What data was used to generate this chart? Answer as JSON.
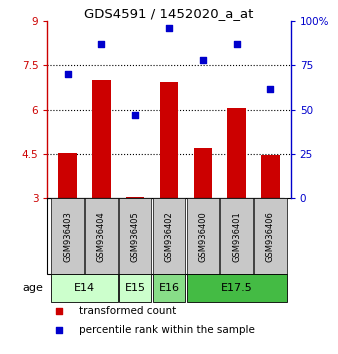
{
  "title": "GDS4591 / 1452020_a_at",
  "samples": [
    "GSM936403",
    "GSM936404",
    "GSM936405",
    "GSM936402",
    "GSM936400",
    "GSM936401",
    "GSM936406"
  ],
  "transformed_count": [
    4.55,
    7.0,
    3.05,
    6.95,
    4.7,
    6.05,
    4.45
  ],
  "percentile_rank": [
    70,
    87,
    47,
    96,
    78,
    87,
    62
  ],
  "left_ylim": [
    3,
    9
  ],
  "right_ylim": [
    0,
    100
  ],
  "left_yticks": [
    3,
    4.5,
    6,
    7.5,
    9
  ],
  "right_yticks": [
    0,
    25,
    50,
    75,
    100
  ],
  "right_yticklabels": [
    "0",
    "25",
    "50",
    "75",
    "100%"
  ],
  "bar_color": "#cc0000",
  "dot_color": "#0000cc",
  "age_groups": [
    {
      "label": "E14",
      "samples": [
        "GSM936403",
        "GSM936404"
      ],
      "color": "#ccffcc"
    },
    {
      "label": "E15",
      "samples": [
        "GSM936405"
      ],
      "color": "#ccffcc"
    },
    {
      "label": "E16",
      "samples": [
        "GSM936402"
      ],
      "color": "#88dd88"
    },
    {
      "label": "E17.5",
      "samples": [
        "GSM936400",
        "GSM936401",
        "GSM936406"
      ],
      "color": "#44bb44"
    }
  ],
  "legend_bar_label": "transformed count",
  "legend_dot_label": "percentile rank within the sample",
  "grid_yticks": [
    4.5,
    6.0,
    7.5
  ],
  "age_label": "age",
  "sample_box_color": "#c8c8c8",
  "bar_width": 0.55
}
